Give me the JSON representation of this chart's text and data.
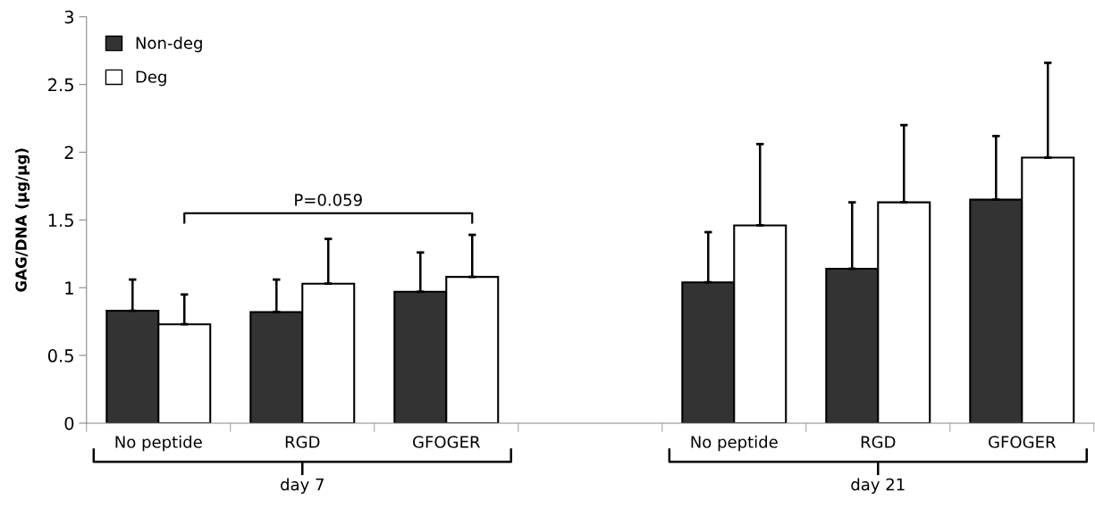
{
  "chart_data": {
    "type": "bar",
    "ylabel": "GAG/DNA (µg/µg)",
    "categories": [
      "No peptide",
      "RGD",
      "GFOGER",
      null,
      "No peptide",
      "RGD",
      "GFOGER"
    ],
    "series": [
      {
        "name": "Non-deg",
        "color": "#333333",
        "values": [
          0.83,
          0.82,
          0.97,
          null,
          1.04,
          1.14,
          1.65
        ],
        "errors": [
          [
            0.83,
            1.06
          ],
          [
            0.82,
            1.06
          ],
          [
            0.97,
            1.26
          ],
          null,
          [
            1.04,
            1.41
          ],
          [
            1.14,
            1.63
          ],
          [
            1.65,
            2.12
          ]
        ]
      },
      {
        "name": "Deg",
        "color": "#ffffff",
        "values": [
          0.73,
          1.03,
          1.08,
          null,
          1.46,
          1.63,
          1.96
        ],
        "errors": [
          [
            0.73,
            0.95
          ],
          [
            1.03,
            1.36
          ],
          [
            1.08,
            1.39
          ],
          null,
          [
            1.46,
            2.06
          ],
          [
            1.63,
            2.2
          ],
          [
            1.96,
            2.66
          ]
        ]
      }
    ],
    "ylim": [
      0,
      3
    ],
    "yticks": [
      0,
      0.5,
      1,
      1.5,
      2,
      2.5,
      3
    ],
    "legend": "top left",
    "grid": false,
    "annotations": [
      "P=0.059",
      "day 7",
      "day 21"
    ]
  }
}
